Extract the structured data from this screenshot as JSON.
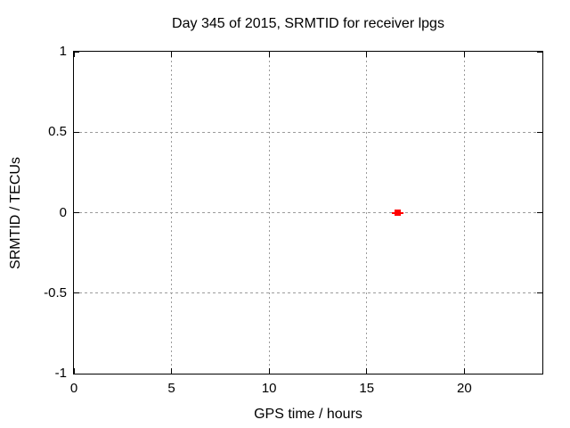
{
  "chart_data": {
    "type": "scatter",
    "title": "Day 345 of 2015, SRMTID for receiver lpgs",
    "xlabel": "GPS time / hours",
    "ylabel": "SRMTID / TECUs",
    "xlim": [
      0,
      24
    ],
    "ylim": [
      -1,
      1
    ],
    "xticks": [
      0,
      5,
      10,
      15,
      20
    ],
    "yticks": [
      -1,
      -0.5,
      0,
      0.5,
      1
    ],
    "grid": true,
    "legend_position": "none",
    "series": [
      {
        "name": "SRMTID",
        "marker": "filled-square",
        "color": "#ff0000",
        "points": [
          {
            "x": 16.6,
            "y": 0.0,
            "xerr": 0.3
          }
        ]
      }
    ]
  },
  "colors": {
    "background": "#ffffff",
    "axis": "#000000",
    "grid": "#9b9b9b",
    "text": "#000000",
    "point": "#ff0000"
  }
}
